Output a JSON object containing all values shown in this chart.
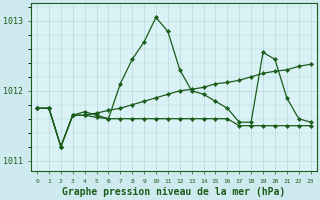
{
  "x": [
    0,
    1,
    2,
    3,
    4,
    5,
    6,
    7,
    8,
    9,
    10,
    11,
    12,
    13,
    14,
    15,
    16,
    17,
    18,
    19,
    20,
    21,
    22,
    23
  ],
  "line_spike": [
    1011.75,
    1011.75,
    1011.2,
    1011.65,
    1011.7,
    1011.65,
    1011.6,
    1012.1,
    1012.45,
    1012.7,
    1013.05,
    1012.85,
    1012.3,
    1012.0,
    1011.95,
    1011.85,
    1011.75,
    1011.55,
    1011.55,
    1012.55,
    1012.45,
    1011.9,
    1011.6,
    1011.55
  ],
  "line_slope": [
    1011.75,
    1011.75,
    1011.2,
    1011.65,
    1011.65,
    1011.68,
    1011.72,
    1011.75,
    1011.8,
    1011.85,
    1011.9,
    1011.95,
    1012.0,
    1012.02,
    1012.05,
    1012.1,
    1012.12,
    1012.15,
    1012.2,
    1012.25,
    1012.28,
    1012.3,
    1012.35,
    1012.38
  ],
  "line_flat": [
    1011.75,
    1011.75,
    1011.2,
    1011.65,
    1011.65,
    1011.62,
    1011.6,
    1011.6,
    1011.6,
    1011.6,
    1011.6,
    1011.6,
    1011.6,
    1011.6,
    1011.6,
    1011.6,
    1011.6,
    1011.5,
    1011.5,
    1011.5,
    1011.5,
    1011.5,
    1011.5,
    1011.5
  ],
  "ylim": [
    1010.85,
    1013.25
  ],
  "yticks": [
    1011,
    1012,
    1013
  ],
  "xlim": [
    -0.5,
    23.5
  ],
  "bg_color": "#ceeaee",
  "plot_bg": "#daf2f5",
  "line_color": "#1a5c1a",
  "grid_color": "#b8d8dc",
  "xlabel": "Graphe pression niveau de la mer (hPa)",
  "xlabel_fontsize": 7.0
}
